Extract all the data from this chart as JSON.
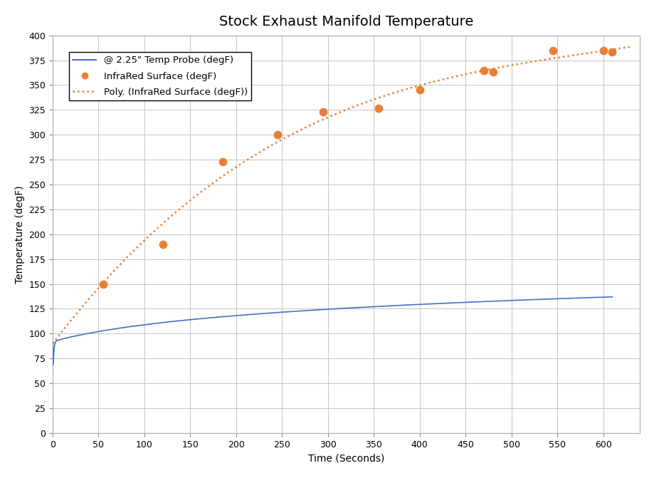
{
  "title": "Stock Exhaust Manifold Temperature",
  "xlabel": "Time (Seconds)",
  "ylabel": "Temperature (degF)",
  "xlim": [
    0,
    640
  ],
  "ylim": [
    0,
    400
  ],
  "xticks": [
    0,
    50,
    100,
    150,
    200,
    250,
    300,
    350,
    400,
    450,
    500,
    550,
    600
  ],
  "yticks": [
    0,
    25,
    50,
    75,
    100,
    125,
    150,
    175,
    200,
    225,
    250,
    275,
    300,
    325,
    350,
    375,
    400
  ],
  "ir_scatter_x": [
    55,
    120,
    185,
    245,
    295,
    355,
    400,
    470,
    480,
    545,
    600,
    610
  ],
  "ir_scatter_y": [
    150,
    190,
    273,
    300,
    323,
    327,
    345,
    365,
    363,
    385,
    385,
    383
  ],
  "probe_color": "#4472C4",
  "ir_color": "#ED7D31",
  "poly_color": "#ED7D31",
  "legend_labels": [
    "@ 2.25\" Temp Probe (degF)",
    "InfraRed Surface (degF)",
    "Poly. (InfraRed Surface (degF))"
  ],
  "background_color": "#ffffff",
  "grid_color": "#C9C9C9",
  "title_fontsize": 14,
  "axis_label_fontsize": 10,
  "tick_fontsize": 9,
  "probe_start_y": 35,
  "probe_dip_y": 88,
  "probe_end_y": 137,
  "poly_fit_degree": 3,
  "poly_x_start": 0,
  "poly_x_end": 630,
  "poly_anchor_x": 0,
  "poly_anchor_y": 95
}
